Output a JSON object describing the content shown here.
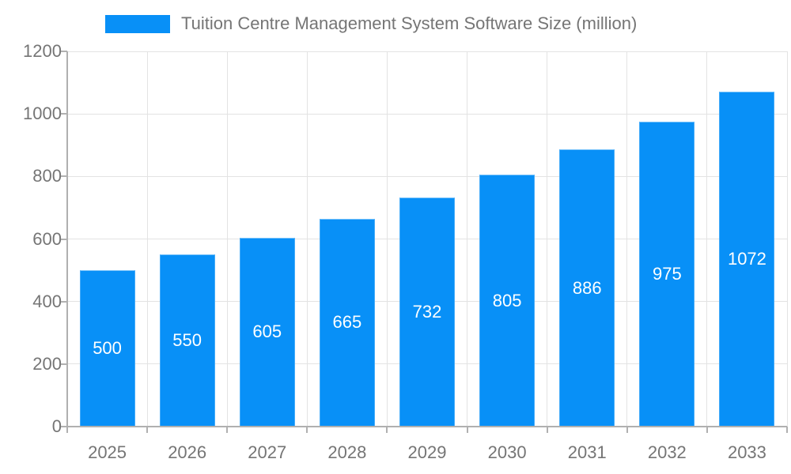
{
  "legend": {
    "label": "Tuition Centre Management System Software Size (million)"
  },
  "colors": {
    "bar": "#0890f7",
    "grid": "#e3e3e3",
    "axis": "#b0b0b0",
    "tick": "#b0b0b0",
    "text": "#757575",
    "value_label": "#ffffff",
    "background": "#ffffff"
  },
  "chart_data": {
    "type": "bar",
    "title": "Tuition Centre Management System Software Size (million)",
    "categories": [
      "2025",
      "2026",
      "2027",
      "2028",
      "2029",
      "2030",
      "2031",
      "2032",
      "2033"
    ],
    "values": [
      500,
      550,
      605,
      665,
      732,
      805,
      886,
      975,
      1072
    ],
    "xlabel": "",
    "ylabel": "",
    "ylim": [
      0,
      1200
    ],
    "yticks": [
      0,
      200,
      400,
      600,
      800,
      1000,
      1200
    ],
    "grid": true,
    "legend_position": "top",
    "value_labels": "inside-center"
  }
}
